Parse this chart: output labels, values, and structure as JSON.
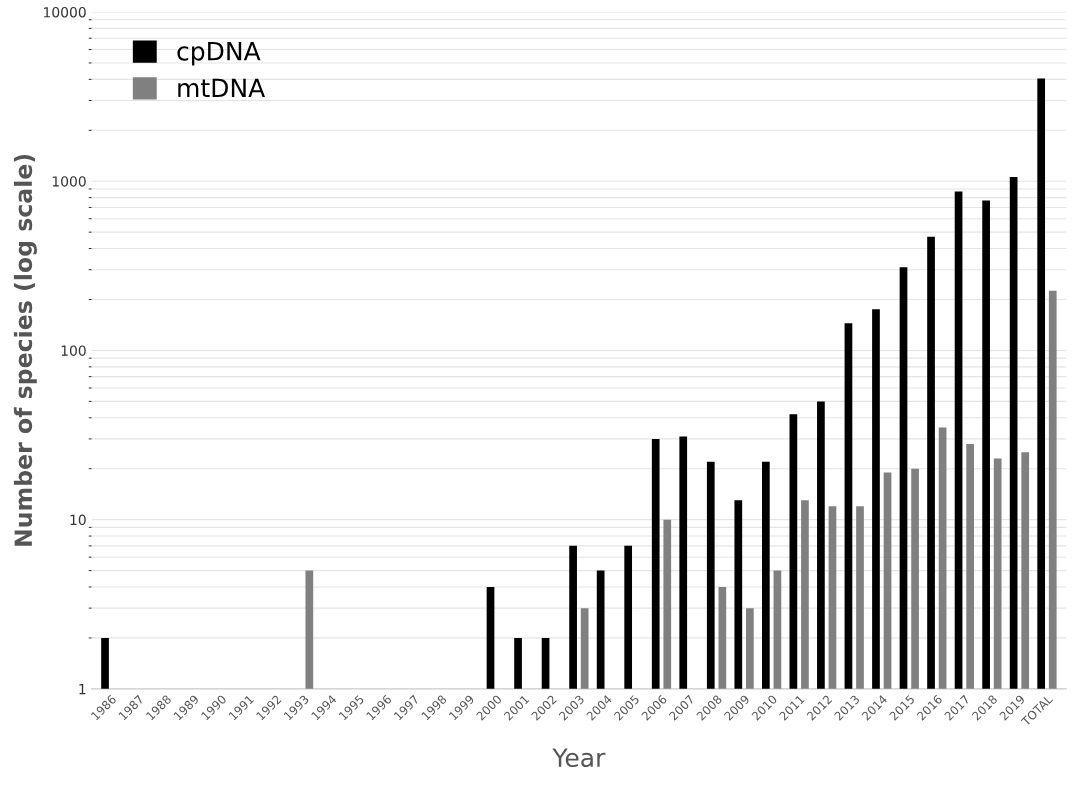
{
  "chart_data": {
    "type": "bar",
    "xlabel": "Year",
    "ylabel": "Number of species (log scale)",
    "log": true,
    "grid": "y",
    "legend": "top left",
    "categories": [
      "1986",
      "1987",
      "1988",
      "1989",
      "1990",
      "1991",
      "1992",
      "1993",
      "1994",
      "1995",
      "1996",
      "1997",
      "1998",
      "1999",
      "2000",
      "2001",
      "2002",
      "2003",
      "2004",
      "2005",
      "2006",
      "2007",
      "2008",
      "2009",
      "2010",
      "2011",
      "2012",
      "2013",
      "2014",
      "2015",
      "2016",
      "2017",
      "2018",
      "2019",
      "TOTAL"
    ],
    "ylim": [
      1,
      10000
    ],
    "yticks": [
      1,
      10,
      100,
      1000,
      10000
    ],
    "series": [
      {
        "name": "cpDNA",
        "color": "#000000",
        "values": [
          2,
          null,
          null,
          null,
          null,
          null,
          null,
          null,
          null,
          null,
          null,
          null,
          null,
          null,
          4,
          2,
          2,
          7,
          5,
          7,
          30,
          31,
          22,
          13,
          22,
          42,
          50,
          145,
          175,
          310,
          470,
          870,
          770,
          1060,
          4050
        ]
      },
      {
        "name": "mtDNA",
        "color": "#808080",
        "values": [
          null,
          null,
          null,
          null,
          null,
          null,
          null,
          5,
          null,
          null,
          null,
          null,
          null,
          null,
          null,
          null,
          null,
          3,
          null,
          null,
          10,
          null,
          4,
          3,
          5,
          13,
          12,
          12,
          19,
          20,
          35,
          28,
          23,
          25,
          225
        ]
      }
    ]
  }
}
